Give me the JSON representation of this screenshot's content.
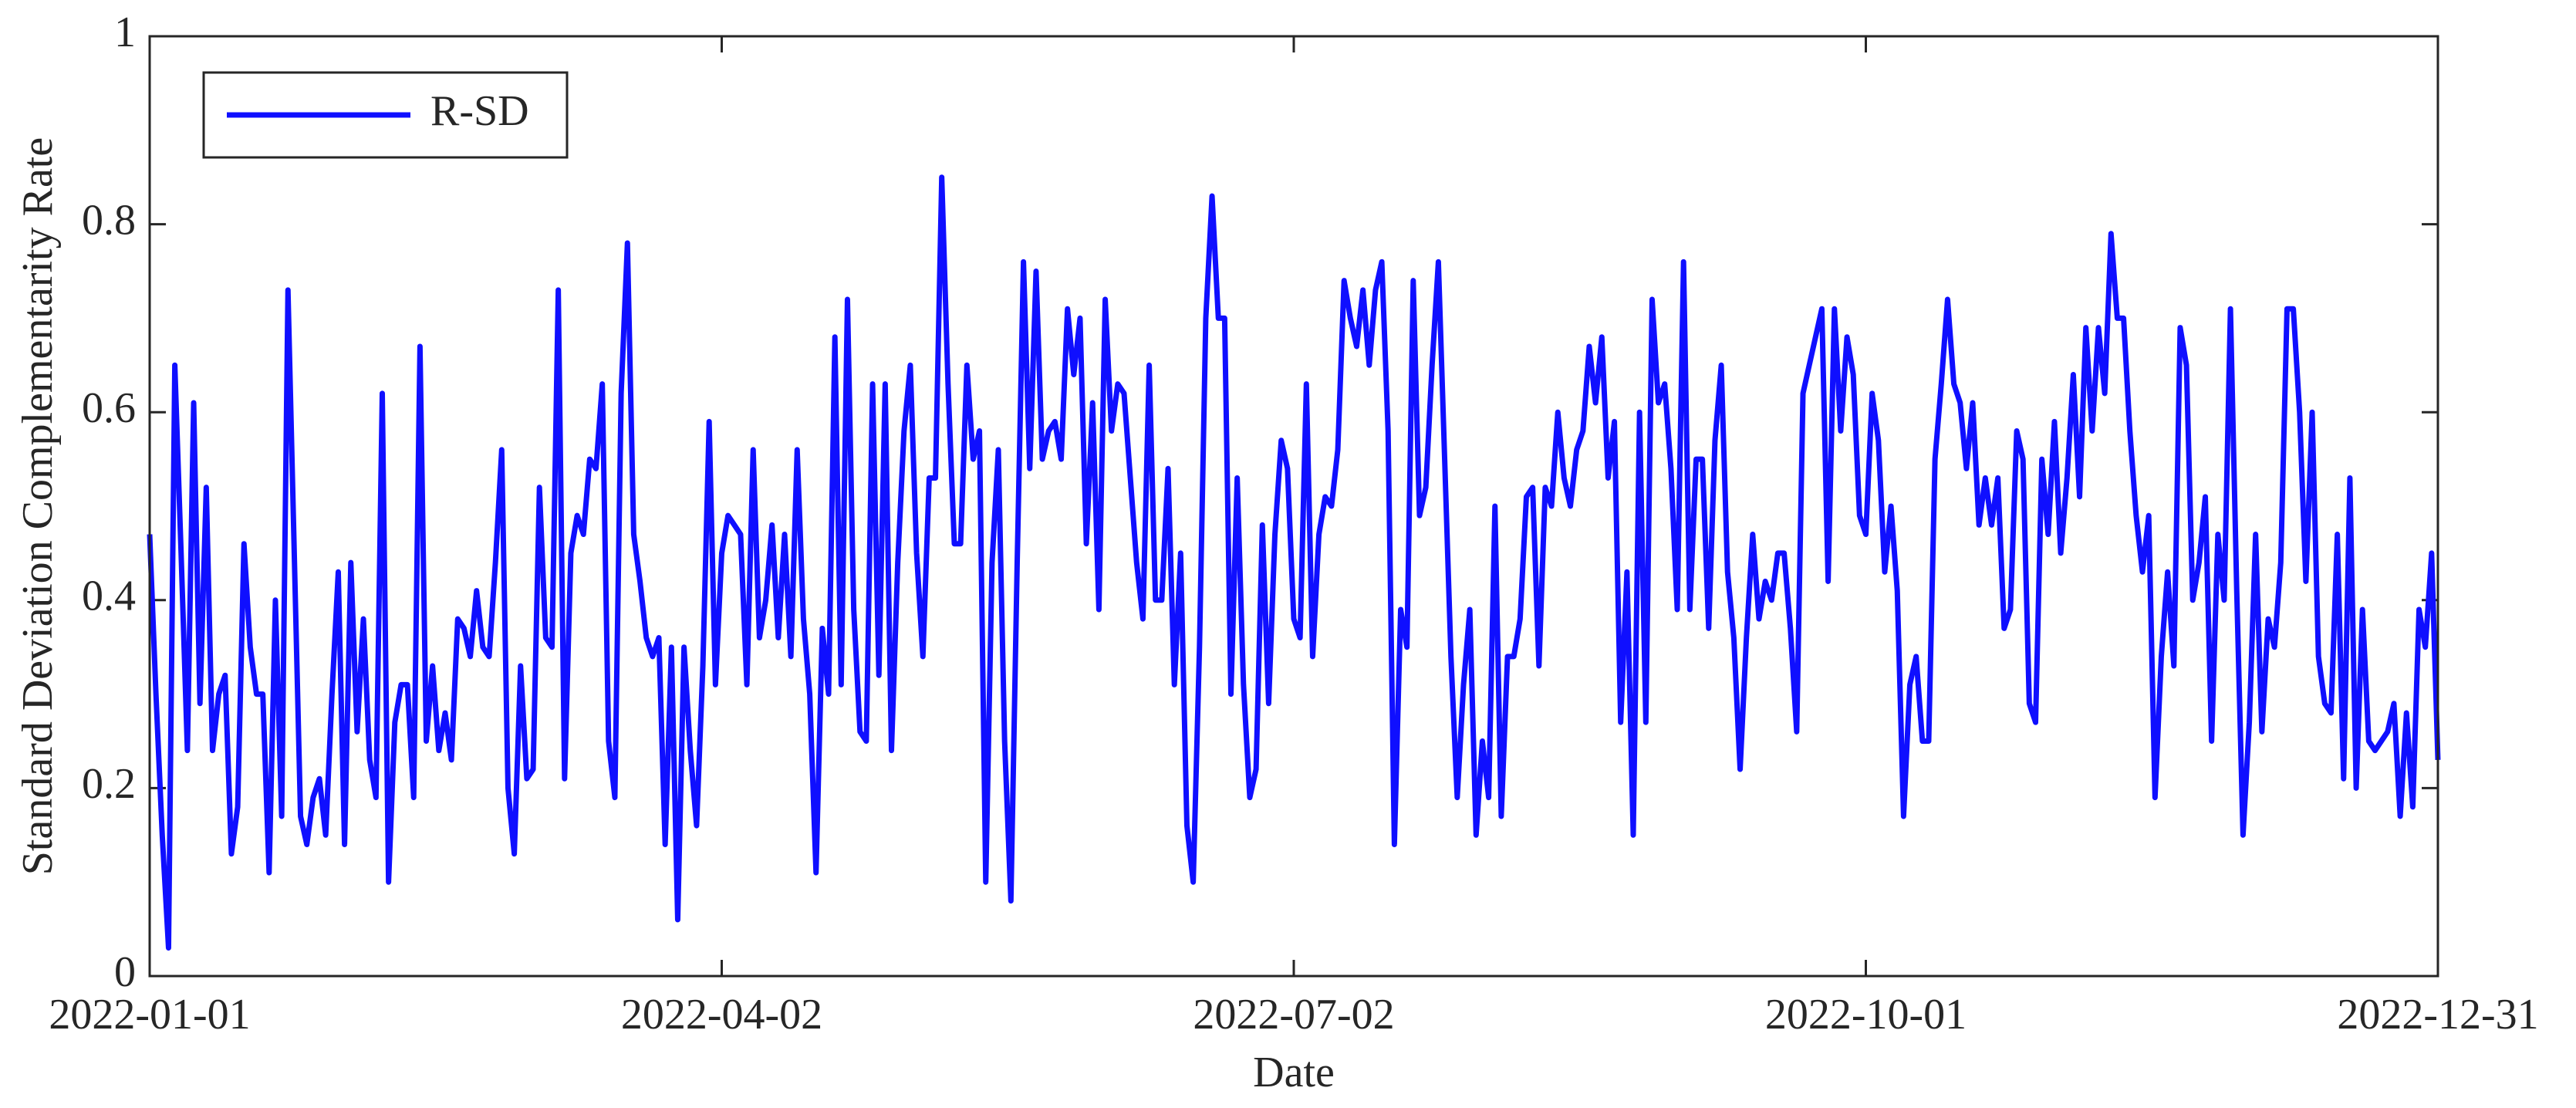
{
  "chart_data": {
    "type": "line",
    "xlabel": "Date",
    "ylabel": "Standard Deviation Complementarity Rate",
    "legend": "upper left",
    "grid": false,
    "xlim": [
      "2022-01-01",
      "2022-12-31"
    ],
    "xticks": [
      "2022-01-01",
      "2022-04-02",
      "2022-07-02",
      "2022-10-01",
      "2022-12-31"
    ],
    "ylim": [
      0,
      1
    ],
    "yticks": [
      0,
      0.2,
      0.4,
      0.6,
      0.8,
      1
    ],
    "x": [
      "2022-01-01",
      "2022-01-02",
      "2022-01-03",
      "2022-01-04",
      "2022-01-05",
      "2022-01-06",
      "2022-01-07",
      "2022-01-08",
      "2022-01-09",
      "2022-01-10",
      "2022-01-11",
      "2022-01-12",
      "2022-01-13",
      "2022-01-14",
      "2022-01-15",
      "2022-01-16",
      "2022-01-17",
      "2022-01-18",
      "2022-01-19",
      "2022-01-20",
      "2022-01-21",
      "2022-01-22",
      "2022-01-23",
      "2022-01-24",
      "2022-01-25",
      "2022-01-26",
      "2022-01-27",
      "2022-01-28",
      "2022-01-29",
      "2022-01-30",
      "2022-01-31",
      "2022-02-01",
      "2022-02-02",
      "2022-02-03",
      "2022-02-04",
      "2022-02-05",
      "2022-02-06",
      "2022-02-07",
      "2022-02-08",
      "2022-02-09",
      "2022-02-10",
      "2022-02-11",
      "2022-02-12",
      "2022-02-13",
      "2022-02-14",
      "2022-02-15",
      "2022-02-16",
      "2022-02-17",
      "2022-02-18",
      "2022-02-19",
      "2022-02-20",
      "2022-02-21",
      "2022-02-22",
      "2022-02-23",
      "2022-02-24",
      "2022-02-25",
      "2022-02-26",
      "2022-02-27",
      "2022-02-28",
      "2022-03-01",
      "2022-03-02",
      "2022-03-03",
      "2022-03-04",
      "2022-03-05",
      "2022-03-06",
      "2022-03-07",
      "2022-03-08",
      "2022-03-09",
      "2022-03-10",
      "2022-03-11",
      "2022-03-12",
      "2022-03-13",
      "2022-03-14",
      "2022-03-15",
      "2022-03-16",
      "2022-03-17",
      "2022-03-18",
      "2022-03-19",
      "2022-03-20",
      "2022-03-21",
      "2022-03-22",
      "2022-03-23",
      "2022-03-24",
      "2022-03-25",
      "2022-03-26",
      "2022-03-27",
      "2022-03-28",
      "2022-03-29",
      "2022-03-30",
      "2022-03-31",
      "2022-04-01",
      "2022-04-02",
      "2022-04-03",
      "2022-04-04",
      "2022-04-05",
      "2022-04-06",
      "2022-04-07",
      "2022-04-08",
      "2022-04-09",
      "2022-04-10",
      "2022-04-11",
      "2022-04-12",
      "2022-04-13",
      "2022-04-14",
      "2022-04-15",
      "2022-04-16",
      "2022-04-17",
      "2022-04-18",
      "2022-04-19",
      "2022-04-20",
      "2022-04-21",
      "2022-04-22",
      "2022-04-23",
      "2022-04-24",
      "2022-04-25",
      "2022-04-26",
      "2022-04-27",
      "2022-04-28",
      "2022-04-29",
      "2022-04-30",
      "2022-05-01",
      "2022-05-02",
      "2022-05-03",
      "2022-05-04",
      "2022-05-05",
      "2022-05-06",
      "2022-05-07",
      "2022-05-08",
      "2022-05-09",
      "2022-05-10",
      "2022-05-11",
      "2022-05-12",
      "2022-05-13",
      "2022-05-14",
      "2022-05-15",
      "2022-05-16",
      "2022-05-17",
      "2022-05-18",
      "2022-05-19",
      "2022-05-20",
      "2022-05-21",
      "2022-05-22",
      "2022-05-23",
      "2022-05-24",
      "2022-05-25",
      "2022-05-26",
      "2022-05-27",
      "2022-05-28",
      "2022-05-29",
      "2022-05-30",
      "2022-05-31",
      "2022-06-01",
      "2022-06-02",
      "2022-06-03",
      "2022-06-04",
      "2022-06-05",
      "2022-06-06",
      "2022-06-07",
      "2022-06-08",
      "2022-06-09",
      "2022-06-10",
      "2022-06-11",
      "2022-06-12",
      "2022-06-13",
      "2022-06-14",
      "2022-06-15",
      "2022-06-16",
      "2022-06-17",
      "2022-06-18",
      "2022-06-19",
      "2022-06-20",
      "2022-06-21",
      "2022-06-22",
      "2022-06-23",
      "2022-06-24",
      "2022-06-25",
      "2022-06-26",
      "2022-06-27",
      "2022-06-28",
      "2022-06-29",
      "2022-06-30",
      "2022-07-01",
      "2022-07-02",
      "2022-07-03",
      "2022-07-04",
      "2022-07-05",
      "2022-07-06",
      "2022-07-07",
      "2022-07-08",
      "2022-07-09",
      "2022-07-10",
      "2022-07-11",
      "2022-07-12",
      "2022-07-13",
      "2022-07-14",
      "2022-07-15",
      "2022-07-16",
      "2022-07-17",
      "2022-07-18",
      "2022-07-19",
      "2022-07-20",
      "2022-07-21",
      "2022-07-22",
      "2022-07-23",
      "2022-07-24",
      "2022-07-25",
      "2022-07-26",
      "2022-07-27",
      "2022-07-28",
      "2022-07-29",
      "2022-07-30",
      "2022-07-31",
      "2022-08-01",
      "2022-08-02",
      "2022-08-03",
      "2022-08-04",
      "2022-08-05",
      "2022-08-06",
      "2022-08-07",
      "2022-08-08",
      "2022-08-09",
      "2022-08-10",
      "2022-08-11",
      "2022-08-12",
      "2022-08-13",
      "2022-08-14",
      "2022-08-15",
      "2022-08-16",
      "2022-08-17",
      "2022-08-18",
      "2022-08-19",
      "2022-08-20",
      "2022-08-21",
      "2022-08-22",
      "2022-08-23",
      "2022-08-24",
      "2022-08-25",
      "2022-08-26",
      "2022-08-27",
      "2022-08-28",
      "2022-08-29",
      "2022-08-30",
      "2022-08-31",
      "2022-09-01",
      "2022-09-02",
      "2022-09-03",
      "2022-09-04",
      "2022-09-05",
      "2022-09-06",
      "2022-09-07",
      "2022-09-08",
      "2022-09-09",
      "2022-09-10",
      "2022-09-11",
      "2022-09-12",
      "2022-09-13",
      "2022-09-14",
      "2022-09-15",
      "2022-09-16",
      "2022-09-17",
      "2022-09-18",
      "2022-09-19",
      "2022-09-20",
      "2022-09-21",
      "2022-09-22",
      "2022-09-23",
      "2022-09-24",
      "2022-09-25",
      "2022-09-26",
      "2022-09-27",
      "2022-09-28",
      "2022-09-29",
      "2022-09-30",
      "2022-10-01",
      "2022-10-02",
      "2022-10-03",
      "2022-10-04",
      "2022-10-05",
      "2022-10-06",
      "2022-10-07",
      "2022-10-08",
      "2022-10-09",
      "2022-10-10",
      "2022-10-11",
      "2022-10-12",
      "2022-10-13",
      "2022-10-14",
      "2022-10-15",
      "2022-10-16",
      "2022-10-17",
      "2022-10-18",
      "2022-10-19",
      "2022-10-20",
      "2022-10-21",
      "2022-10-22",
      "2022-10-23",
      "2022-10-24",
      "2022-10-25",
      "2022-10-26",
      "2022-10-27",
      "2022-10-28",
      "2022-10-29",
      "2022-10-30",
      "2022-10-31",
      "2022-11-01",
      "2022-11-02",
      "2022-11-03",
      "2022-11-04",
      "2022-11-05",
      "2022-11-06",
      "2022-11-07",
      "2022-11-08",
      "2022-11-09",
      "2022-11-10",
      "2022-11-11",
      "2022-11-12",
      "2022-11-13",
      "2022-11-14",
      "2022-11-15",
      "2022-11-16",
      "2022-11-17",
      "2022-11-18",
      "2022-11-19",
      "2022-11-20",
      "2022-11-21",
      "2022-11-22",
      "2022-11-23",
      "2022-11-24",
      "2022-11-25",
      "2022-11-26",
      "2022-11-27",
      "2022-11-28",
      "2022-11-29",
      "2022-11-30",
      "2022-12-01",
      "2022-12-02",
      "2022-12-03",
      "2022-12-04",
      "2022-12-05",
      "2022-12-06",
      "2022-12-07",
      "2022-12-08",
      "2022-12-09",
      "2022-12-10",
      "2022-12-11",
      "2022-12-12",
      "2022-12-13",
      "2022-12-14",
      "2022-12-15",
      "2022-12-16",
      "2022-12-17",
      "2022-12-18",
      "2022-12-19",
      "2022-12-20",
      "2022-12-21",
      "2022-12-22",
      "2022-12-23",
      "2022-12-24",
      "2022-12-25",
      "2022-12-26",
      "2022-12-27",
      "2022-12-28",
      "2022-12-29",
      "2022-12-30",
      "2022-12-31"
    ],
    "series": [
      {
        "name": "R-SD",
        "color": "#0f0fff",
        "values": [
          0.47,
          0.3,
          0.15,
          0.03,
          0.65,
          0.45,
          0.24,
          0.61,
          0.29,
          0.52,
          0.24,
          0.3,
          0.32,
          0.13,
          0.18,
          0.46,
          0.35,
          0.3,
          0.3,
          0.11,
          0.4,
          0.17,
          0.73,
          0.45,
          0.17,
          0.14,
          0.19,
          0.21,
          0.15,
          0.3,
          0.43,
          0.14,
          0.44,
          0.26,
          0.38,
          0.23,
          0.19,
          0.62,
          0.1,
          0.27,
          0.31,
          0.31,
          0.19,
          0.67,
          0.25,
          0.33,
          0.24,
          0.28,
          0.23,
          0.38,
          0.37,
          0.34,
          0.41,
          0.35,
          0.34,
          0.44,
          0.56,
          0.2,
          0.13,
          0.33,
          0.21,
          0.22,
          0.52,
          0.36,
          0.35,
          0.73,
          0.21,
          0.45,
          0.49,
          0.47,
          0.55,
          0.54,
          0.63,
          0.25,
          0.19,
          0.62,
          0.78,
          0.47,
          0.42,
          0.36,
          0.34,
          0.36,
          0.14,
          0.35,
          0.06,
          0.35,
          0.24,
          0.16,
          0.33,
          0.59,
          0.31,
          0.45,
          0.49,
          0.48,
          0.47,
          0.31,
          0.56,
          0.36,
          0.4,
          0.48,
          0.36,
          0.47,
          0.34,
          0.56,
          0.38,
          0.3,
          0.11,
          0.37,
          0.3,
          0.68,
          0.31,
          0.72,
          0.39,
          0.26,
          0.25,
          0.63,
          0.32,
          0.63,
          0.24,
          0.44,
          0.58,
          0.65,
          0.45,
          0.34,
          0.53,
          0.53,
          0.85,
          0.63,
          0.46,
          0.46,
          0.65,
          0.55,
          0.58,
          0.1,
          0.44,
          0.56,
          0.25,
          0.08,
          0.44,
          0.76,
          0.54,
          0.75,
          0.55,
          0.58,
          0.59,
          0.55,
          0.71,
          0.64,
          0.7,
          0.46,
          0.61,
          0.39,
          0.72,
          0.58,
          0.63,
          0.62,
          0.53,
          0.44,
          0.38,
          0.65,
          0.4,
          0.4,
          0.54,
          0.31,
          0.45,
          0.16,
          0.1,
          0.35,
          0.7,
          0.83,
          0.7,
          0.7,
          0.3,
          0.53,
          0.31,
          0.19,
          0.22,
          0.48,
          0.29,
          0.47,
          0.57,
          0.54,
          0.38,
          0.36,
          0.63,
          0.34,
          0.47,
          0.51,
          0.5,
          0.56,
          0.74,
          0.7,
          0.67,
          0.73,
          0.65,
          0.73,
          0.76,
          0.58,
          0.14,
          0.39,
          0.35,
          0.74,
          0.49,
          0.52,
          0.65,
          0.76,
          0.55,
          0.34,
          0.19,
          0.31,
          0.39,
          0.15,
          0.25,
          0.19,
          0.5,
          0.17,
          0.34,
          0.34,
          0.38,
          0.51,
          0.52,
          0.33,
          0.52,
          0.5,
          0.6,
          0.53,
          0.5,
          0.56,
          0.58,
          0.67,
          0.61,
          0.68,
          0.53,
          0.59,
          0.27,
          0.43,
          0.15,
          0.6,
          0.27,
          0.72,
          0.61,
          0.63,
          0.54,
          0.39,
          0.76,
          0.39,
          0.55,
          0.55,
          0.37,
          0.57,
          0.65,
          0.43,
          0.36,
          0.22,
          0.36,
          0.47,
          0.38,
          0.42,
          0.4,
          0.45,
          0.45,
          0.37,
          0.26,
          0.62,
          0.65,
          0.68,
          0.71,
          0.42,
          0.71,
          0.58,
          0.68,
          0.64,
          0.49,
          0.47,
          0.62,
          0.57,
          0.43,
          0.5,
          0.41,
          0.17,
          0.31,
          0.34,
          0.25,
          0.25,
          0.55,
          0.63,
          0.72,
          0.63,
          0.61,
          0.54,
          0.61,
          0.48,
          0.53,
          0.48,
          0.53,
          0.37,
          0.39,
          0.58,
          0.55,
          0.29,
          0.27,
          0.55,
          0.47,
          0.59,
          0.45,
          0.53,
          0.64,
          0.51,
          0.69,
          0.58,
          0.69,
          0.62,
          0.79,
          0.7,
          0.7,
          0.58,
          0.49,
          0.43,
          0.49,
          0.19,
          0.34,
          0.43,
          0.33,
          0.69,
          0.65,
          0.4,
          0.44,
          0.51,
          0.25,
          0.47,
          0.4,
          0.71,
          0.41,
          0.15,
          0.27,
          0.47,
          0.26,
          0.38,
          0.35,
          0.44,
          0.71,
          0.71,
          0.6,
          0.42,
          0.6,
          0.34,
          0.29,
          0.28,
          0.47,
          0.21,
          0.53,
          0.2,
          0.39,
          0.25,
          0.24,
          0.25,
          0.26,
          0.29,
          0.17,
          0.28,
          0.18,
          0.39,
          0.35,
          0.45,
          0.23
        ]
      }
    ]
  }
}
